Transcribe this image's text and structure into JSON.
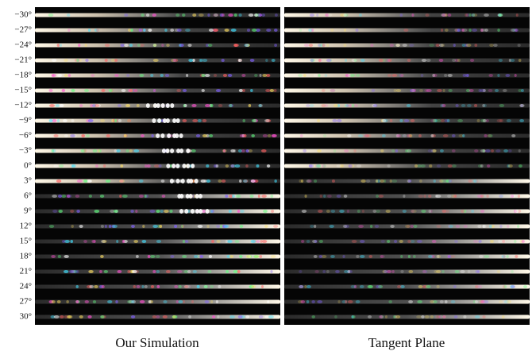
{
  "row_labels": [
    "−30°",
    "−27°",
    "−24°",
    "−21°",
    "−18°",
    "−15°",
    "−12°",
    "−9°",
    "−6°",
    "−3°",
    "0°",
    "3°",
    "6°",
    "9°",
    "12°",
    "15°",
    "18°",
    "21°",
    "24°",
    "27°",
    "30°"
  ],
  "panels": [
    {
      "caption": "Our Simulation"
    },
    {
      "caption": "Tangent Plane"
    }
  ]
}
